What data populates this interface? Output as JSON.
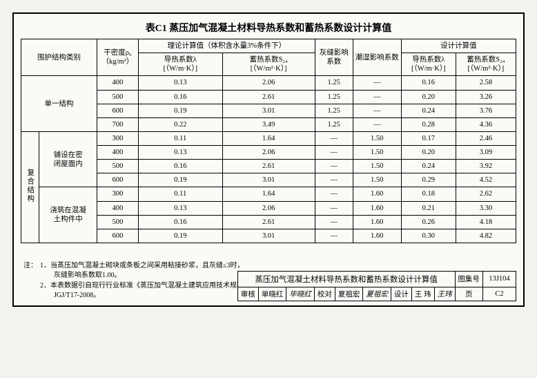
{
  "title": "表C1  蒸压加气混凝土材料导热系数和蓄热系数设计计算值",
  "head": {
    "col1": "围护结构类别",
    "col2": "干密度ρ₀\n（kg/m³）",
    "grp_theory": "理论计算值（体积含水量3%条件下）",
    "col3": "导热系数λ\n[（W/m·K）]",
    "col4": "蓄热系数S₂₄\n[（W/m²·K）]",
    "col5": "灰缝影响\n系数",
    "col6": "潮湿影响系数",
    "grp_design": "设计计算值",
    "col7": "导热系数λ\n[（W/m·K）]",
    "col8": "蓄热系数S₂₄\n[（W/m²·K）]"
  },
  "sections": [
    {
      "cat1": "单一结构",
      "cat1span": 4,
      "cat2": null,
      "rows": [
        {
          "d": "400",
          "l": "0.13",
          "s": "2.06",
          "g": "1.25",
          "m": "—",
          "ld": "0.16",
          "sd": "2.58"
        },
        {
          "d": "500",
          "l": "0.16",
          "s": "2.61",
          "g": "1.25",
          "m": "—",
          "ld": "0.20",
          "sd": "3.26"
        },
        {
          "d": "600",
          "l": "0.19",
          "s": "3.01",
          "g": "1.25",
          "m": "—",
          "ld": "0.24",
          "sd": "3.76"
        },
        {
          "d": "700",
          "l": "0.22",
          "s": "3.49",
          "g": "1.25",
          "m": "—",
          "ld": "0.28",
          "sd": "4.36"
        }
      ]
    },
    {
      "cat1": "复合结构",
      "cat1span": 8,
      "subs": [
        {
          "cat2": "铺设在密\n闭屋面内",
          "rows": [
            {
              "d": "300",
              "l": "0.11",
              "s": "1.64",
              "g": "—",
              "m": "1.50",
              "ld": "0.17",
              "sd": "2.46"
            },
            {
              "d": "400",
              "l": "0.13",
              "s": "2.06",
              "g": "—",
              "m": "1.50",
              "ld": "0.20",
              "sd": "3.09"
            },
            {
              "d": "500",
              "l": "0.16",
              "s": "2.61",
              "g": "—",
              "m": "1.50",
              "ld": "0.24",
              "sd": "3.92"
            },
            {
              "d": "600",
              "l": "0.19",
              "s": "3.01",
              "g": "—",
              "m": "1.50",
              "ld": "0.29",
              "sd": "4.52"
            }
          ]
        },
        {
          "cat2": "浇筑在混凝\n土构件中",
          "rows": [
            {
              "d": "300",
              "l": "0.11",
              "s": "1.64",
              "g": "—",
              "m": "1.60",
              "ld": "0.18",
              "sd": "2.62"
            },
            {
              "d": "400",
              "l": "0.13",
              "s": "2.06",
              "g": "—",
              "m": "1.60",
              "ld": "0.21",
              "sd": "3.30"
            },
            {
              "d": "500",
              "l": "0.16",
              "s": "2.61",
              "g": "—",
              "m": "1.60",
              "ld": "0.26",
              "sd": "4.18"
            },
            {
              "d": "600",
              "l": "0.19",
              "s": "3.01",
              "g": "—",
              "m": "1.60",
              "ld": "0.30",
              "sd": "4.82"
            }
          ]
        }
      ]
    }
  ],
  "notes": {
    "label": "注：",
    "items": [
      "1．当蒸压加气混凝土砌块或条板之间采用粘接砂浆，且灰缝≤3时，\n　　灰缝影响系数取1.00。",
      "2．本表数据引自现行行业标准《蒸压加气混凝土建筑应用技术规程》\n　　JGJ/T17-2008。"
    ]
  },
  "titleblock": {
    "main": "蒸压加气混凝土材料导热系数和蓄热系数设计计算值",
    "atlas_lbl": "图集号",
    "atlas_val": "13J104",
    "row2": {
      "a1": "审核",
      "a2": "单晓红",
      "a3": "毕晓红",
      "b1": "校对",
      "b2": "夏祖宏",
      "b3": "夏祖宏",
      "c1": "设计",
      "c2": "王 玮",
      "c3": "王玮",
      "pg_lbl": "页",
      "pg_val": "C2"
    }
  }
}
